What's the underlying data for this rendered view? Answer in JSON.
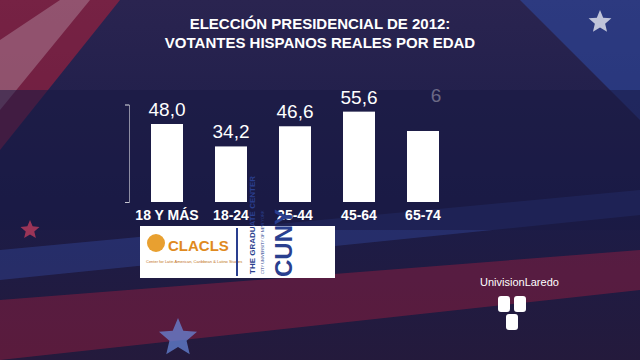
{
  "chart_data": {
    "type": "bar",
    "title": "ELECCIÓN PRESIDENCIAL DE 2012:",
    "subtitle": "VOTANTES HISPANOS REALES POR EDAD",
    "categories": [
      "18 Y MÁS",
      "18-24",
      "25-44",
      "45-64",
      "65-74"
    ],
    "values": [
      48.0,
      34.2,
      46.6,
      55.6,
      43.7
    ],
    "value_labels": [
      "48,0",
      "34,2",
      "46,6",
      "55,6",
      null
    ],
    "annotations": [
      "6"
    ],
    "color": "#ffffff",
    "data_labels": true,
    "tick_labels": "x",
    "ylim": [
      0,
      60
    ],
    "yticks": [
      0,
      60
    ],
    "grid": false
  },
  "logos": {
    "clacls": "CLACLS",
    "clacls_name": "Center for Latin American, Caribbean & Latino Studies",
    "center": "THE GRADUATE CENTER",
    "cuny": "CUNY",
    "cuny_name": "CITY UNIVERSITY OF NEW YORK",
    "watermark": "UnivisionLaredo"
  }
}
